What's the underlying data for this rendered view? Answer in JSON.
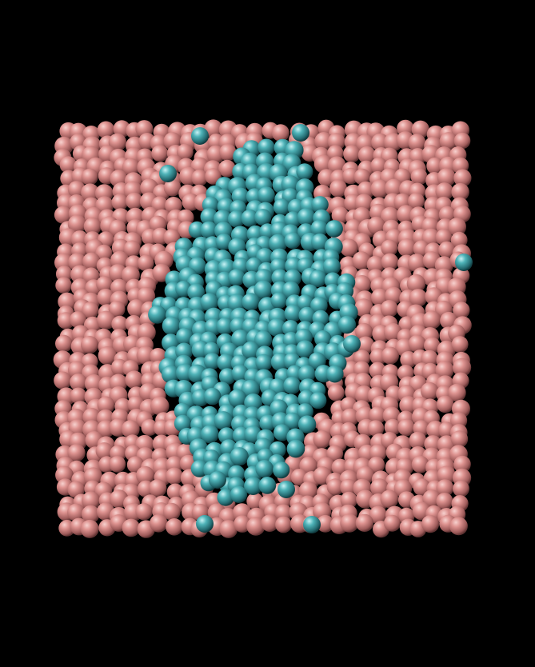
{
  "scene": {
    "background_color": "#000000",
    "box_particle_color": "#d98a88",
    "cluster_particle_color": "#3f9ea4",
    "description_visible_text": ""
  }
}
